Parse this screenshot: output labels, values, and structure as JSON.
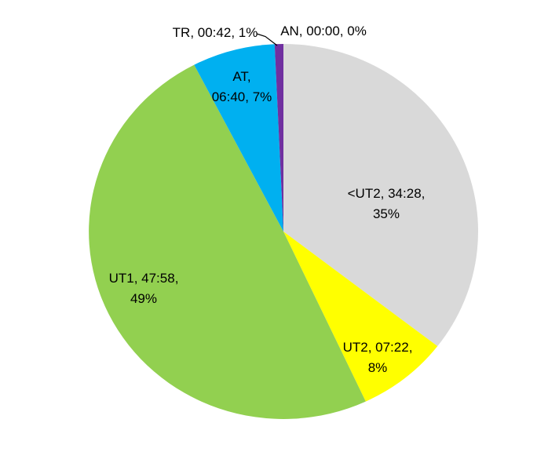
{
  "chart_data": {
    "type": "pie",
    "title": "",
    "value_format": "hh:mm",
    "start_angle_deg": 0,
    "direction": "clockwise",
    "legend": "none",
    "background_color": "#FFFFFF",
    "label_text_color": "#000000",
    "label_style": "category, time, percent",
    "slices": [
      {
        "name": "<UT2",
        "time": "34:28",
        "percent": 35,
        "color": "#D9D9D9",
        "label_lines": [
          "<UT2, 34:28,",
          "35%"
        ]
      },
      {
        "name": "UT2",
        "time": "07:22",
        "percent": 8,
        "color": "#FFFF00",
        "label_lines": [
          "UT2, 07:22,",
          "8%"
        ]
      },
      {
        "name": "UT1",
        "time": "47:58",
        "percent": 49,
        "color": "#92D050",
        "label_lines": [
          "UT1, 47:58,",
          "49%"
        ]
      },
      {
        "name": "AT",
        "time": "06:40",
        "percent": 7,
        "color": "#00B0F0",
        "label_lines": [
          "AT,",
          "06:40, 7%"
        ]
      },
      {
        "name": "TR",
        "time": "00:42",
        "percent": 1,
        "color": "#7030A0",
        "label_lines": [
          "TR, 00:42, 1%"
        ]
      },
      {
        "name": "AN",
        "time": "00:00",
        "percent": 0,
        "color": null,
        "label_lines": [
          "AN, 00:00, 0%"
        ]
      }
    ]
  }
}
